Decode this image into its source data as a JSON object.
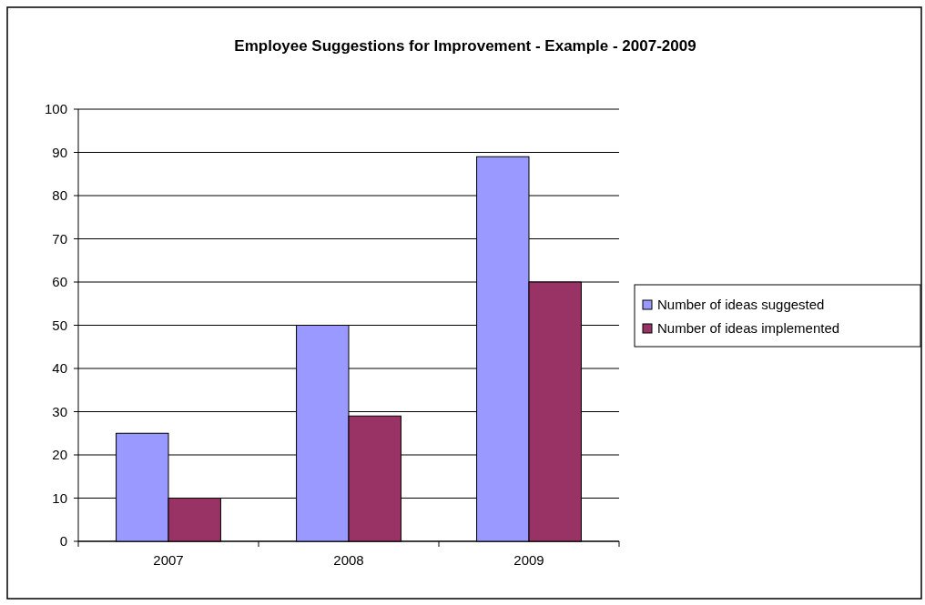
{
  "chart_data": {
    "type": "bar",
    "title": "Employee Suggestions for Improvement - Example - 2007-2009",
    "categories": [
      "2007",
      "2008",
      "2009"
    ],
    "series": [
      {
        "name": "Number of ideas suggested",
        "color": "#9999ff",
        "values": [
          25,
          50,
          89
        ]
      },
      {
        "name": "Number of ideas implemented",
        "color": "#993366",
        "values": [
          10,
          29,
          60
        ]
      }
    ],
    "ylim": [
      0,
      100
    ],
    "yticks": [
      0,
      10,
      20,
      30,
      40,
      50,
      60,
      70,
      80,
      90,
      100
    ],
    "grid": "y",
    "legend": "right"
  }
}
